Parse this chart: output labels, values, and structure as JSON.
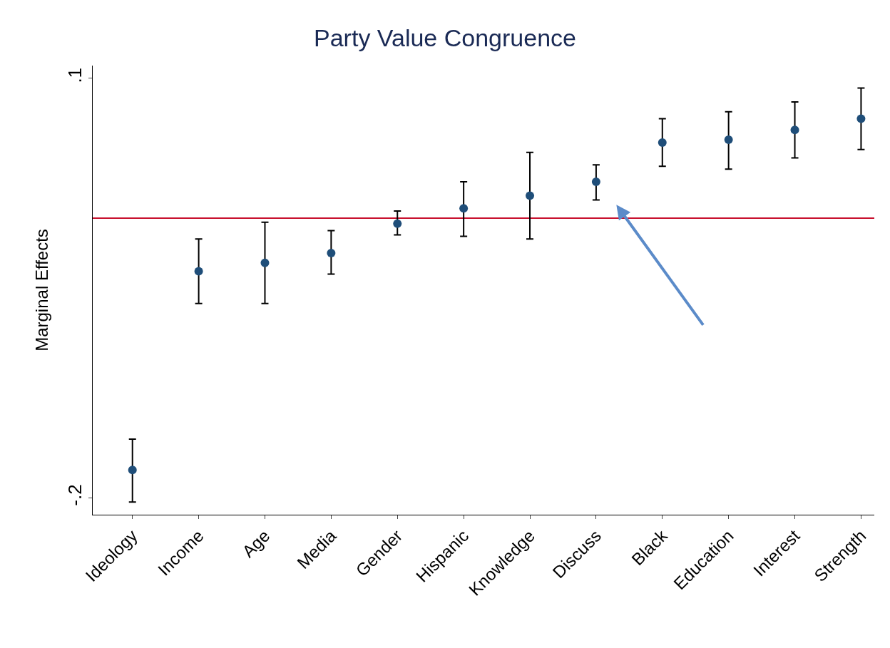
{
  "chart_data": {
    "type": "scatter",
    "title": "Party Value Congruence",
    "ylabel": "Marginal Effects",
    "categories": [
      "Ideology",
      "Income",
      "Age",
      "Media",
      "Gender",
      "Hispanic",
      "Knowledge",
      "Discuss",
      "Black",
      "Education",
      "Interest",
      "Strength"
    ],
    "series": [
      {
        "color": "#1f4e79",
        "values": [
          -0.18,
          -0.038,
          -0.032,
          -0.025,
          -0.004,
          0.007,
          0.016,
          0.026,
          0.054,
          0.056,
          0.063,
          0.071
        ],
        "errors": [
          [
            -0.203,
            -0.158
          ],
          [
            -0.061,
            -0.015
          ],
          [
            -0.061,
            -0.003
          ],
          [
            -0.04,
            -0.009
          ],
          [
            -0.012,
            0.005
          ],
          [
            -0.013,
            0.026
          ],
          [
            -0.015,
            0.047
          ],
          [
            0.013,
            0.038
          ],
          [
            0.037,
            0.071
          ],
          [
            0.035,
            0.076
          ],
          [
            0.043,
            0.083
          ],
          [
            0.049,
            0.093
          ]
        ]
      }
    ],
    "ylim": [
      -0.212,
      0.109
    ],
    "yticks": [
      {
        "value": 0.1,
        "label": ".1"
      },
      {
        "value": -0.2,
        "label": "-.2"
      }
    ],
    "ref_lines": [
      {
        "axis": "y",
        "value": 0,
        "color": "#c8102e"
      }
    ],
    "marker": "circle"
  }
}
